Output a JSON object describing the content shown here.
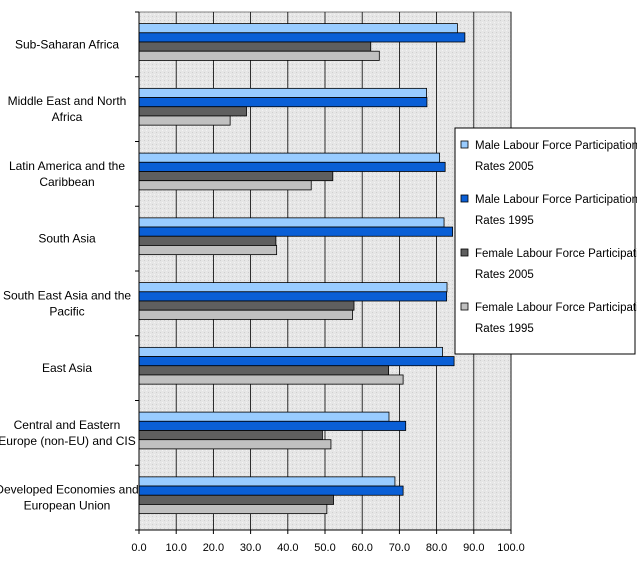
{
  "chart_data": {
    "type": "bar",
    "orientation": "horizontal",
    "categories": [
      [
        "Sub-Saharan Africa"
      ],
      [
        "Middle East and North",
        "Africa"
      ],
      [
        "Latin America and the",
        "Caribbean"
      ],
      [
        "South Asia"
      ],
      [
        "South East Asia and the",
        "Pacific"
      ],
      [
        "East Asia"
      ],
      [
        "Central and Eastern",
        "Europe (non-EU) and CIS"
      ],
      [
        "Developed Economies and",
        "European Union"
      ]
    ],
    "series": [
      {
        "name": [
          "Male Labour Force Participation",
          "Rates 2005"
        ],
        "color": "#99ccff",
        "values": [
          85.6,
          77.3,
          80.8,
          82.0,
          82.8,
          81.6,
          67.2,
          68.8
        ]
      },
      {
        "name": [
          "Male Labour Force Participation",
          "Rates 1995"
        ],
        "color": "#0a5fd6",
        "values": [
          87.6,
          77.4,
          82.3,
          84.3,
          82.7,
          84.7,
          71.7,
          71.0
        ]
      },
      {
        "name": [
          "Female Labour Force Participation",
          "Rates 2005"
        ],
        "color": "#5f5f5f",
        "values": [
          62.3,
          28.9,
          52.1,
          36.8,
          57.8,
          67.1,
          49.3,
          52.3
        ]
      },
      {
        "name": [
          "Female Labour Force Participation",
          "Rates 1995"
        ],
        "color": "#c0c0c0",
        "values": [
          64.6,
          24.5,
          46.3,
          37.0,
          57.4,
          71.0,
          51.6,
          50.5
        ]
      }
    ],
    "xlim": [
      0,
      100
    ],
    "xticks": [
      "0.0",
      "10.0",
      "20.0",
      "30.0",
      "40.0",
      "50.0",
      "60.0",
      "70.0",
      "80.0",
      "90.0",
      "100.0"
    ],
    "grid": true,
    "legend_position": "right"
  }
}
